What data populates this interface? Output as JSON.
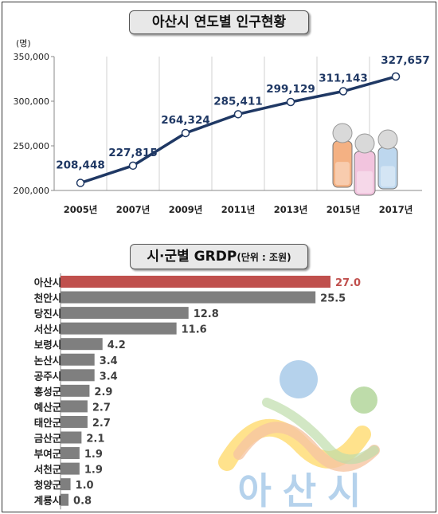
{
  "chart_data": [
    {
      "type": "line",
      "title": "아산시 연도별 인구현황",
      "ylabel": "(명)",
      "categories": [
        "2005년",
        "2007년",
        "2009년",
        "2011년",
        "2013년",
        "2015년",
        "2017년"
      ],
      "values": [
        208448,
        227815,
        264324,
        285411,
        299129,
        311143,
        327657
      ],
      "value_labels": [
        "208,448",
        "227,815",
        "264,324",
        "285,411",
        "299,129",
        "311,143",
        "327,657"
      ],
      "yticks": [
        200000,
        250000,
        300000,
        350000
      ],
      "ytick_labels": [
        "200,000",
        "250,000",
        "300,000",
        "350,000"
      ],
      "ylim": [
        200000,
        350000
      ],
      "grid": "vertical",
      "colors": {
        "line": "#1f3864",
        "marker": "#ffffff",
        "label": "#1f3864"
      }
    },
    {
      "type": "bar",
      "orientation": "horizontal",
      "title": "시·군별 GRDP",
      "title_note": "(단위 : 조원)",
      "categories": [
        "아산시",
        "천안시",
        "당진시",
        "서산시",
        "보령시",
        "논산시",
        "공주시",
        "홍성군",
        "예산군",
        "태안군",
        "금산군",
        "부여군",
        "서천군",
        "청양군",
        "계룡시"
      ],
      "values": [
        27.0,
        25.5,
        12.8,
        11.6,
        4.2,
        3.4,
        3.4,
        2.9,
        2.7,
        2.7,
        2.1,
        1.9,
        1.9,
        1.0,
        0.8
      ],
      "value_labels": [
        "27.0",
        "25.5",
        "12.8",
        "11.6",
        "4.2",
        "3.4",
        "3.4",
        "2.9",
        "2.7",
        "2.7",
        "2.1",
        "1.9",
        "1.9",
        "1.0",
        "0.8"
      ],
      "highlight_index": 0,
      "colors": {
        "highlight": "#c0504d",
        "bar": "#7f7f7f",
        "label": "#404040",
        "highlight_label": "#c0504d"
      }
    }
  ],
  "logo": {
    "text": "아산시",
    "colors": [
      "#9dc3e6",
      "#a9d18e",
      "#f4b183",
      "#ffd966"
    ]
  }
}
